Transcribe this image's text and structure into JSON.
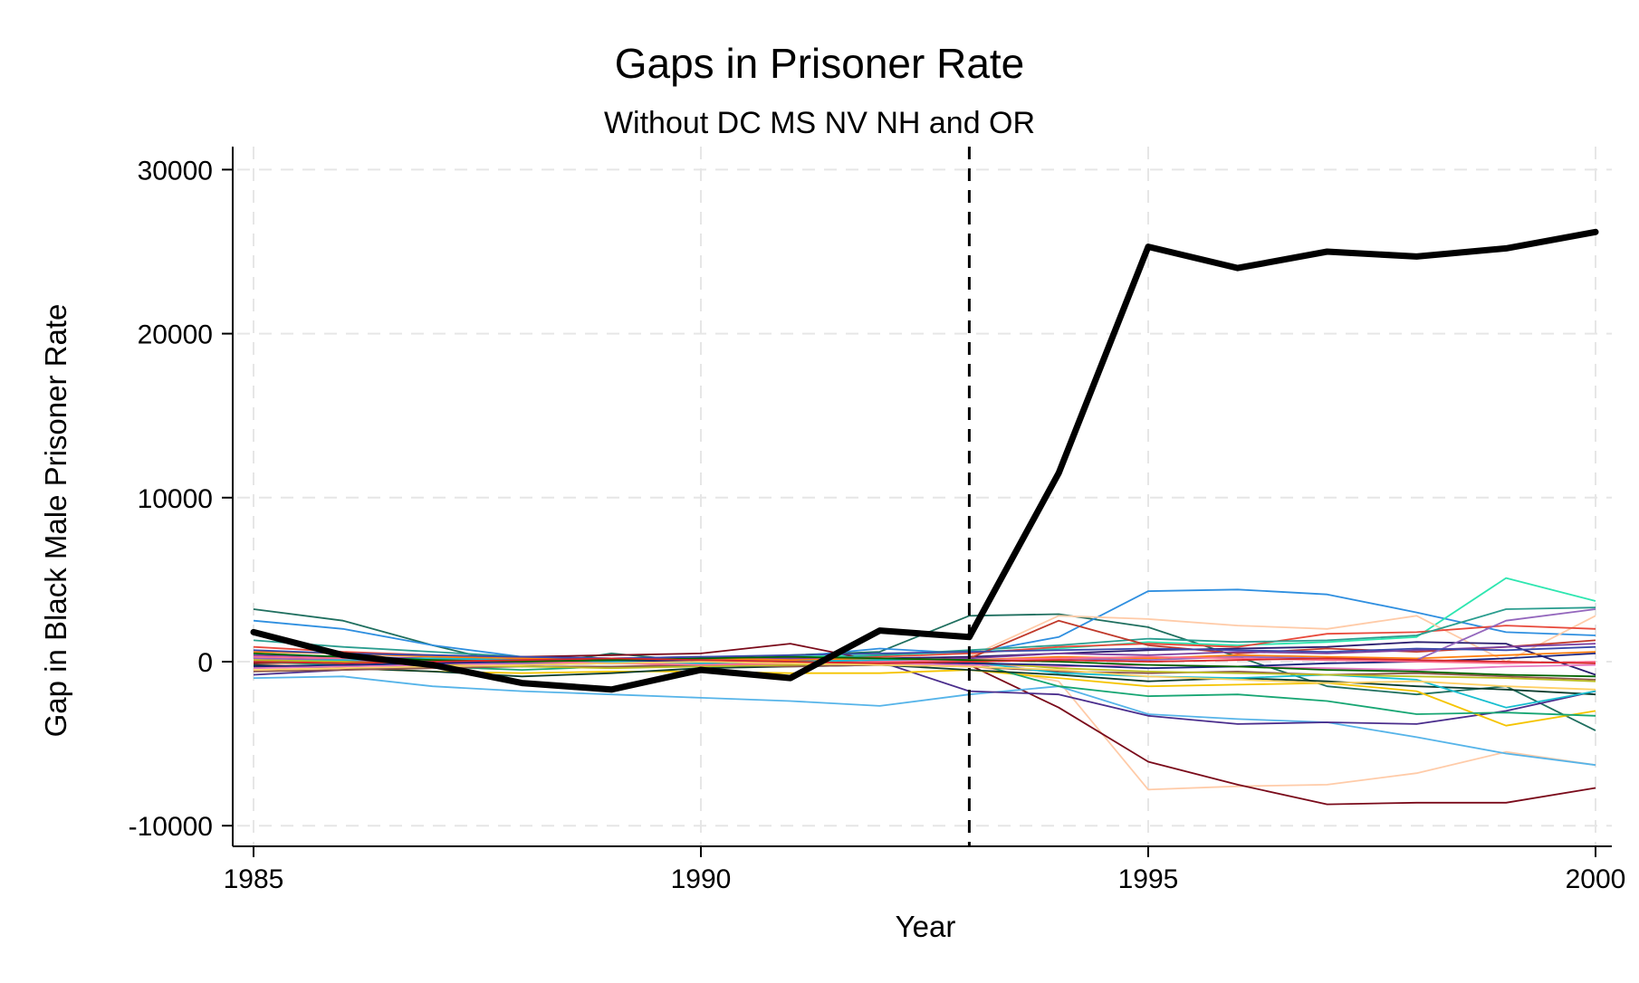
{
  "chart_data": {
    "type": "line",
    "title": "Gaps in Prisoner Rate",
    "subtitle": "Without DC MS NV NH and OR",
    "xlabel": "Year",
    "ylabel": "Gap in Black Male Prisoner Rate",
    "xlim": [
      1985,
      2000
    ],
    "ylim": [
      -11000,
      30500
    ],
    "xticks": [
      1985,
      1990,
      1995,
      2000
    ],
    "yticks": [
      -10000,
      0,
      10000,
      20000,
      30000
    ],
    "xtick_labels": [
      "1985",
      "1990",
      "1995",
      "2000"
    ],
    "ytick_labels": [
      "-10000",
      "0",
      "10000",
      "20000",
      "30000"
    ],
    "grid": true,
    "treatment_year": 1993,
    "x": [
      1985,
      1986,
      1987,
      1988,
      1989,
      1990,
      1991,
      1992,
      1993,
      1994,
      1995,
      1996,
      1997,
      1998,
      1999,
      2000
    ],
    "highlight_series": {
      "color": "#000000",
      "values": [
        1800,
        400,
        -200,
        -1300,
        -1700,
        -500,
        -1000,
        1900,
        1500,
        11500,
        25300,
        24000,
        25000,
        24700,
        25200,
        26200
      ]
    },
    "series": [
      {
        "color": "#1f6f5f",
        "values": [
          3200,
          2500,
          1000,
          -300,
          500,
          0,
          400,
          600,
          2800,
          2900,
          2100,
          300,
          -1500,
          -2000,
          -1500,
          -4200
        ]
      },
      {
        "color": "#2f8fe0",
        "values": [
          2500,
          2000,
          1000,
          300,
          200,
          100,
          300,
          800,
          500,
          1500,
          4300,
          4400,
          4100,
          3000,
          1800,
          1600
        ]
      },
      {
        "color": "#2ee6b0",
        "values": [
          500,
          300,
          200,
          100,
          100,
          200,
          300,
          400,
          600,
          800,
          1200,
          1000,
          1200,
          1500,
          5100,
          3700
        ]
      },
      {
        "color": "#ffcba8",
        "values": [
          200,
          100,
          -100,
          -200,
          -100,
          0,
          100,
          200,
          300,
          2800,
          2600,
          2200,
          2000,
          2800,
          0,
          2800
        ]
      },
      {
        "color": "#ffcba8",
        "values": [
          -200,
          -100,
          0,
          100,
          -100,
          0,
          -100,
          0,
          -200,
          -1200,
          -7800,
          -7600,
          -7500,
          -6800,
          -5500,
          -6300
        ]
      },
      {
        "color": "#7a0a1a",
        "values": [
          -100,
          0,
          200,
          300,
          400,
          500,
          1100,
          0,
          -200,
          -2800,
          -6100,
          -7500,
          -8700,
          -8600,
          -8600,
          -7700
        ]
      },
      {
        "color": "#56b4e9",
        "values": [
          -1000,
          -900,
          -1500,
          -1800,
          -2000,
          -2200,
          -2400,
          -2700,
          -2000,
          -1500,
          -3200,
          -3500,
          -3700,
          -4600,
          -5600,
          -6300
        ]
      },
      {
        "color": "#4a2d8c",
        "values": [
          -800,
          -500,
          -300,
          -200,
          -100,
          0,
          100,
          0,
          -1800,
          -2000,
          -3300,
          -3800,
          -3700,
          -3800,
          -3000,
          -1800
        ]
      },
      {
        "color": "#f5c400",
        "values": [
          -300,
          -400,
          -600,
          -700,
          -600,
          -600,
          -700,
          -700,
          -500,
          -1000,
          -1500,
          -1400,
          -1300,
          -1800,
          -3900,
          -3000
        ]
      },
      {
        "color": "#17a673",
        "values": [
          0,
          -200,
          -300,
          -500,
          -300,
          -300,
          -200,
          -100,
          0,
          -1500,
          -2100,
          -2000,
          -2400,
          -3200,
          -3100,
          -3300
        ]
      },
      {
        "color": "#e84a3c",
        "values": [
          900,
          600,
          400,
          200,
          200,
          100,
          200,
          300,
          500,
          900,
          1100,
          900,
          1700,
          1800,
          2200,
          2000
        ]
      },
      {
        "color": "#2a1f6f",
        "values": [
          300,
          200,
          100,
          0,
          -100,
          0,
          100,
          200,
          300,
          500,
          700,
          800,
          900,
          1200,
          1100,
          -800
        ]
      },
      {
        "color": "#2a9d8f",
        "values": [
          1300,
          900,
          600,
          300,
          100,
          0,
          100,
          400,
          700,
          1000,
          1400,
          1200,
          1300,
          1600,
          3200,
          3300
        ]
      },
      {
        "color": "#c0392b",
        "values": [
          100,
          0,
          -100,
          0,
          100,
          0,
          -100,
          0,
          200,
          2500,
          1000,
          500,
          800,
          600,
          900,
          1300
        ]
      },
      {
        "color": "#0b3d2e",
        "values": [
          -200,
          -400,
          -600,
          -900,
          -700,
          -400,
          -300,
          -200,
          -500,
          -800,
          -1200,
          -1000,
          -1200,
          -1500,
          -1700,
          -2000
        ]
      },
      {
        "color": "#7b3fa0",
        "values": [
          400,
          300,
          200,
          300,
          200,
          300,
          200,
          100,
          200,
          500,
          400,
          600,
          500,
          700,
          900,
          1100
        ]
      },
      {
        "color": "#e377c2",
        "values": [
          -400,
          -300,
          -200,
          -100,
          0,
          -100,
          -200,
          -100,
          -200,
          -300,
          -200,
          -300,
          -400,
          -500,
          -300,
          -200
        ]
      },
      {
        "color": "#ff7f0e",
        "values": [
          600,
          500,
          300,
          200,
          100,
          200,
          100,
          200,
          100,
          300,
          200,
          400,
          300,
          200,
          400,
          600
        ]
      },
      {
        "color": "#8c564b",
        "values": [
          -600,
          -500,
          -400,
          -300,
          -300,
          -200,
          -300,
          -200,
          -300,
          -600,
          -700,
          -600,
          -800,
          -700,
          -900,
          -1100
        ]
      },
      {
        "color": "#9467bd",
        "values": [
          200,
          100,
          0,
          -100,
          0,
          100,
          0,
          -100,
          0,
          200,
          100,
          300,
          200,
          100,
          2500,
          3200
        ]
      },
      {
        "color": "#17becf",
        "values": [
          0,
          100,
          200,
          100,
          0,
          -100,
          0,
          100,
          0,
          -700,
          -900,
          -1000,
          -800,
          -1100,
          -2800,
          -1800
        ]
      },
      {
        "color": "#bcbd22",
        "values": [
          100,
          0,
          -200,
          -300,
          -400,
          -300,
          -200,
          -100,
          0,
          -400,
          -600,
          -700,
          -800,
          -900,
          -1000,
          -1200
        ]
      },
      {
        "color": "#1a237e",
        "values": [
          -300,
          -200,
          -100,
          0,
          100,
          0,
          -100,
          0,
          -100,
          -200,
          -400,
          -300,
          -100,
          0,
          200,
          500
        ]
      },
      {
        "color": "#ff6f91",
        "values": [
          300,
          200,
          100,
          0,
          -100,
          -200,
          -100,
          0,
          100,
          200,
          300,
          200,
          100,
          0,
          -100,
          0
        ]
      },
      {
        "color": "#006400",
        "values": [
          500,
          300,
          100,
          0,
          100,
          200,
          300,
          200,
          100,
          0,
          -200,
          -300,
          -500,
          -600,
          -800,
          -900
        ]
      },
      {
        "color": "#ffd166",
        "values": [
          -500,
          -400,
          -300,
          -200,
          -100,
          0,
          -100,
          -200,
          -300,
          -500,
          -900,
          -1100,
          -1300,
          -1200,
          -1500,
          -1700
        ]
      },
      {
        "color": "#3949ab",
        "values": [
          700,
          500,
          400,
          300,
          200,
          300,
          400,
          500,
          600,
          700,
          800,
          700,
          600,
          800,
          700,
          900
        ]
      },
      {
        "color": "#d62728",
        "values": [
          0,
          -100,
          0,
          100,
          200,
          100,
          0,
          -100,
          0,
          100,
          0,
          100,
          200,
          100,
          0,
          -100
        ]
      }
    ]
  }
}
